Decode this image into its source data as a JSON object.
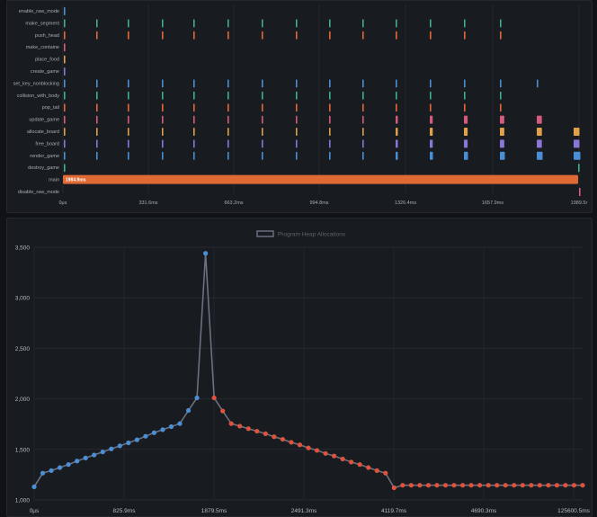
{
  "timeline": {
    "labels": [
      "enable_raw_mode",
      "make_segment",
      "push_head",
      "make_containe",
      "place_food",
      "create_game",
      "set_key_nonblocking",
      "collision_with_body",
      "pop_tail",
      "update_game",
      "allocate_board",
      "free_board",
      "render_game",
      "destroy_game",
      "main",
      "disable_raw_mode"
    ],
    "colors": [
      "#4a8fd6",
      "#3fae93",
      "#e0693a",
      "#d45b7e",
      "#e0a04a",
      "#8a76d6",
      "#4a8fd6",
      "#3fae93",
      "#e0693a",
      "#d45b7e",
      "#e0a04a",
      "#8a76d6",
      "#4a8fd6",
      "#3fae93",
      "#e0693a",
      "#d45b7e"
    ],
    "x_ticks": [
      "0μs",
      "331.6ms",
      "663.2ms",
      "994.8ms",
      "1326.4ms",
      "1657.9ms",
      "1989.5r"
    ],
    "main_label": "1984.9ms"
  },
  "chart_data": {
    "type": "line",
    "title": "",
    "legend": [
      "Program Heap Allocations"
    ],
    "legend_placement": "top-center",
    "ylim": [
      1000,
      3500
    ],
    "y_ticks": [
      "3,500",
      "3,000",
      "2,500",
      "2,000",
      "1,500",
      "1,000"
    ],
    "x_ticks": [
      "0μs",
      "825.9ms",
      "1879.5ms",
      "2491.3ms",
      "4119.7ms",
      "4690.3ms",
      "125600.5ms"
    ],
    "grid": true,
    "series": [
      {
        "name": "Program Heap Allocations",
        "values": [
          1130,
          1265,
          1290,
          1320,
          1350,
          1385,
          1415,
          1445,
          1475,
          1505,
          1535,
          1565,
          1595,
          1630,
          1665,
          1695,
          1725,
          1755,
          1885,
          2010,
          3440,
          2010,
          1880,
          1755,
          1730,
          1705,
          1680,
          1655,
          1625,
          1600,
          1570,
          1545,
          1515,
          1490,
          1460,
          1435,
          1405,
          1375,
          1350,
          1320,
          1290,
          1265,
          1120,
          1145,
          1145,
          1145,
          1145,
          1145,
          1145,
          1145,
          1145,
          1145,
          1145,
          1145,
          1145,
          1145,
          1145,
          1145,
          1145,
          1145,
          1145,
          1145,
          1145,
          1145,
          1145
        ],
        "point_colors": "blue while increasing, red while decreasing"
      }
    ],
    "colors": {
      "increase": "#4a8fd6",
      "decrease": "#e0523c",
      "line": "#6b7080"
    }
  }
}
